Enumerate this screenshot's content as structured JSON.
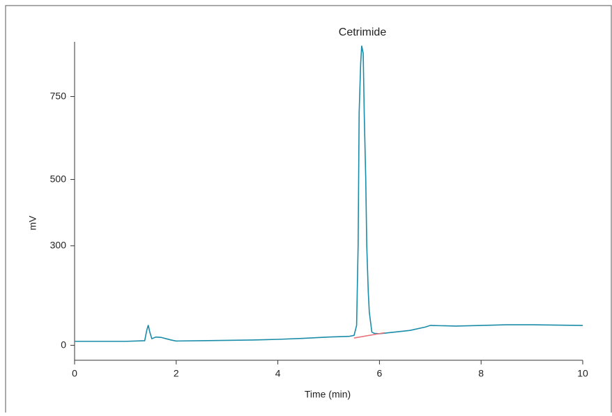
{
  "chart_data": {
    "type": "line",
    "title": "Cetrimide",
    "xlabel": "Time (min)",
    "ylabel": "mV",
    "xlim": [
      0,
      10
    ],
    "xticks": [
      0,
      2,
      4,
      6,
      8,
      10
    ],
    "ylim": [
      -45,
      915
    ],
    "yticks": [
      0,
      300,
      500,
      750
    ],
    "series": [
      {
        "color": "#1a8ca8",
        "x": [
          0,
          0.5,
          1.0,
          1.38,
          1.42,
          1.45,
          1.48,
          1.52,
          1.6,
          1.7,
          1.8,
          1.9,
          2.0,
          2.5,
          3.0,
          3.5,
          4.0,
          4.5,
          5.0,
          5.4,
          5.5,
          5.55,
          5.58,
          5.6,
          5.63,
          5.65,
          5.68,
          5.7,
          5.73,
          5.75,
          5.78,
          5.8,
          5.85,
          5.9,
          6.0,
          6.3,
          6.6,
          6.9,
          7.0,
          7.5,
          8.0,
          8.5,
          9.0,
          9.5,
          10.0
        ],
        "values": [
          12,
          12,
          12,
          14,
          45,
          61,
          40,
          20,
          25,
          24,
          20,
          16,
          13,
          14,
          15,
          16,
          18,
          21,
          25,
          27,
          30,
          60,
          300,
          700,
          850,
          903,
          880,
          700,
          500,
          300,
          160,
          100,
          40,
          36,
          35,
          40,
          45,
          55,
          60,
          58,
          60,
          62,
          62,
          61,
          60
        ]
      },
      {
        "color": "#e8707a",
        "x": [
          5.5,
          6.1
        ],
        "values": [
          22,
          38
        ]
      }
    ]
  }
}
